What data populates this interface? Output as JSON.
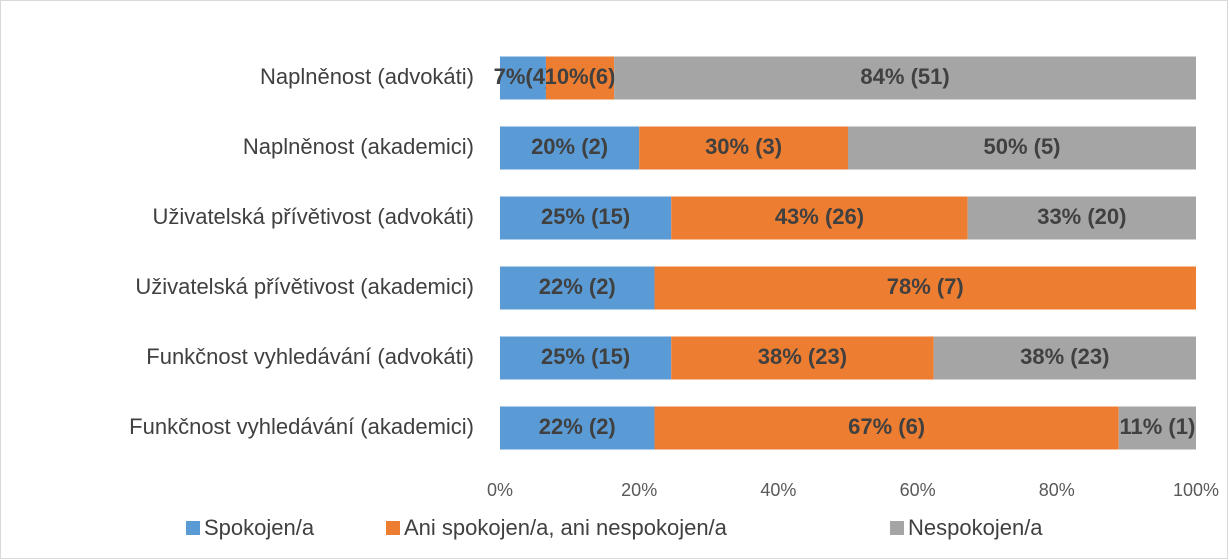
{
  "chart_data": {
    "type": "stacked-bar-horizontal",
    "categories": [
      "Naplněnost (advokáti)",
      "Naplněnost (akademici)",
      "Uživatelská přívětivost (advokáti)",
      "Uživatelská přívětivost (akademici)",
      "Funkčnost vyhledávání (advokáti)",
      "Funkčnost vyhledávání (akademici)"
    ],
    "series": [
      {
        "name": "Spokojen/a",
        "color": "#5b9bd5",
        "values": [
          6.6,
          20,
          24.6,
          22.2,
          24.6,
          22.2
        ],
        "value_labels": [
          "7%(4)",
          "20% (2)",
          "25% (15)",
          "22% (2)",
          "25% (15)",
          "22% (2)"
        ]
      },
      {
        "name": "Ani spokojen/a, ani nespokojen/a",
        "color": "#ed7d31",
        "values": [
          9.8,
          30,
          42.6,
          77.8,
          37.7,
          66.7
        ],
        "value_labels": [
          "10%(6)",
          "30% (3)",
          "43% (26)",
          "78% (7)",
          "38% (23)",
          "67% (6)"
        ]
      },
      {
        "name": "Nespokojen/a",
        "color": "#a5a5a5",
        "values": [
          83.6,
          50,
          32.8,
          null,
          37.7,
          11.1
        ],
        "value_labels": [
          "84% (51)",
          "50% (5)",
          "33% (20)",
          null,
          "38% (23)",
          "11% (1)"
        ]
      }
    ],
    "xlim": [
      0,
      100
    ],
    "xticks": [
      {
        "value": 0,
        "label": "0%"
      },
      {
        "value": 20,
        "label": "20%"
      },
      {
        "value": 40,
        "label": "40%"
      },
      {
        "value": 60,
        "label": "60%"
      },
      {
        "value": 80,
        "label": "80%"
      },
      {
        "value": 100,
        "label": "100%"
      }
    ],
    "grid": false,
    "legend": "bottom"
  }
}
